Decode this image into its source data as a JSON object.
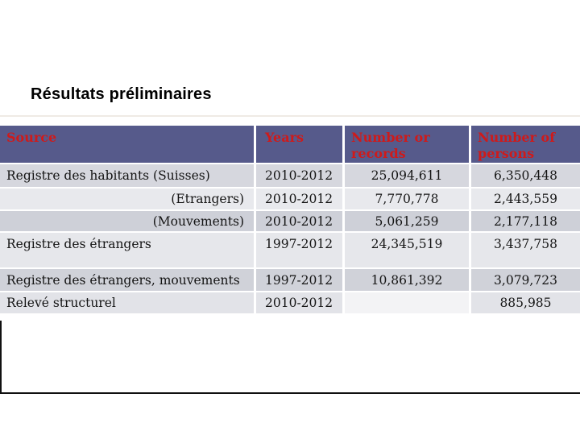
{
  "slide": {
    "title": "Résultats préliminaires"
  },
  "table": {
    "headers": [
      "Source",
      "Years",
      "Number or records",
      "Number of persons"
    ],
    "rows": [
      {
        "source": "Registre des habitants (Suisses)",
        "years": "2010-2012",
        "records": "25,094,611",
        "persons": "6,350,448"
      },
      {
        "source": "(Etrangers)",
        "years": "2010-2012",
        "records": "7,770,778",
        "persons": "2,443,559"
      },
      {
        "source": "(Mouvements)",
        "years": "2010-2012",
        "records": "5,061,259",
        "persons": "2,177,118"
      },
      {
        "source": "Registre des étrangers",
        "years": "1997-2012",
        "records": "24,345,519",
        "persons": "3,437,758"
      },
      {
        "source": "Registre des étrangers, mouvements",
        "years": "1997-2012",
        "records": "10,861,392",
        "persons": "3,079,723"
      },
      {
        "source": "Relevé structurel",
        "years": "2010-2012",
        "records": "",
        "persons": "885,985"
      }
    ]
  },
  "colors": {
    "header_background": "#565a8b",
    "header_text": "#cf1a1a",
    "row_light": "#e8e9ed",
    "row_medium": "#d6d7de",
    "row_dark": "#ced0d8",
    "title_text": "#000000"
  }
}
